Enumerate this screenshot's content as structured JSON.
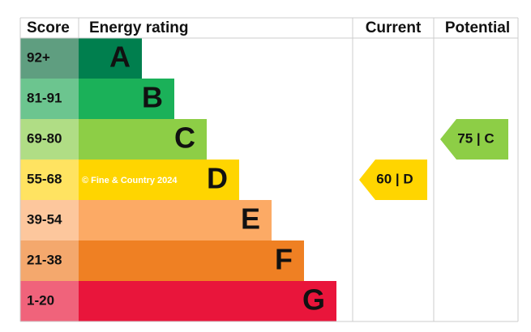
{
  "header": {
    "score": "Score",
    "rating": "Energy rating",
    "current": "Current",
    "potential": "Potential"
  },
  "bands": [
    {
      "score": "92+",
      "letter": "A"
    },
    {
      "score": "81-91",
      "letter": "B"
    },
    {
      "score": "69-80",
      "letter": "C"
    },
    {
      "score": "55-68",
      "letter": "D"
    },
    {
      "score": "39-54",
      "letter": "E"
    },
    {
      "score": "21-38",
      "letter": "F"
    },
    {
      "score": "1-20",
      "letter": "G"
    }
  ],
  "watermark": "© Fine & Country 2024",
  "current": {
    "label": "60 | D"
  },
  "potential": {
    "label": "75 | C"
  }
}
